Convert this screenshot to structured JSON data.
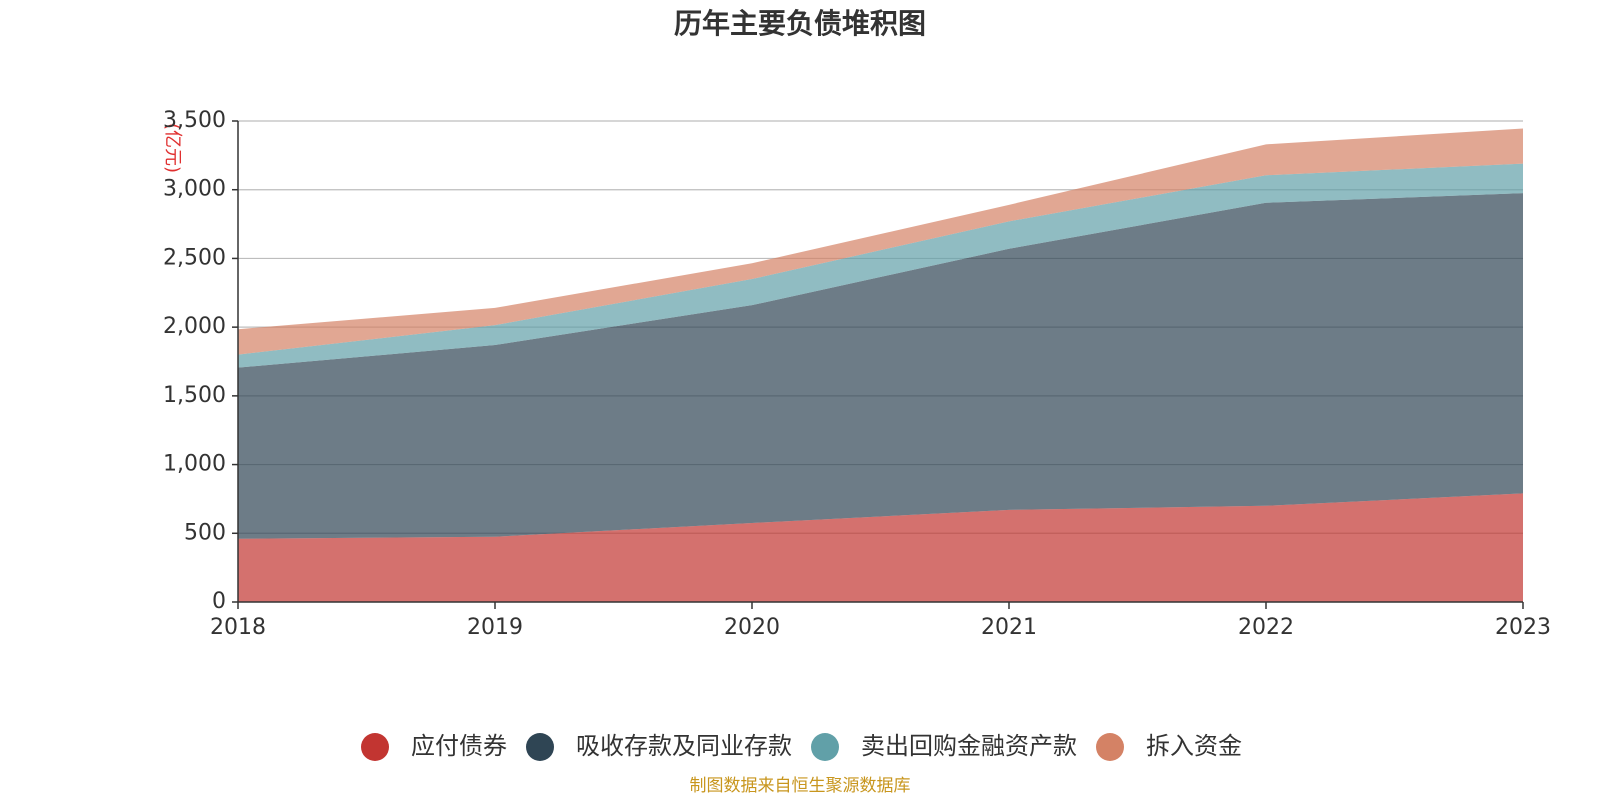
{
  "chart_data": {
    "type": "area",
    "stacked": true,
    "title": "历年主要负债堆积图",
    "unit_label": "(亿元)",
    "x": [
      "2018",
      "2019",
      "2020",
      "2021",
      "2022",
      "2023"
    ],
    "ylim": [
      0,
      3500
    ],
    "yticks": [
      0,
      500,
      1000,
      1500,
      2000,
      2500,
      3000,
      3500
    ],
    "ytick_labels": [
      "0",
      "500",
      "1,000",
      "1,500",
      "2,000",
      "2,500",
      "3,000",
      "3,500"
    ],
    "grid": true,
    "legend_position": "bottom-center",
    "series": [
      {
        "name": "应付债券",
        "color": "#c23531",
        "values": [
          460,
          475,
          575,
          670,
          700,
          790
        ]
      },
      {
        "name": "吸收存款及同业存款",
        "color": "#2f4554",
        "values": [
          1245,
          1395,
          1585,
          1900,
          2205,
          2185
        ]
      },
      {
        "name": "卖出回购金融资产款",
        "color": "#61a0a8",
        "values": [
          95,
          145,
          190,
          200,
          200,
          215
        ]
      },
      {
        "name": "拆入资金",
        "color": "#d48265",
        "values": [
          185,
          125,
          115,
          120,
          225,
          255
        ]
      }
    ],
    "source_note": "制图数据来自恒生聚源数据库"
  }
}
